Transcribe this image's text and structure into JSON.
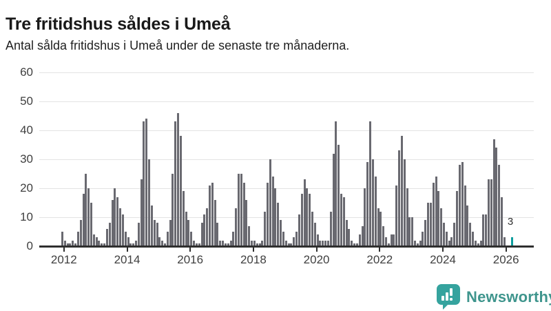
{
  "header": {
    "title": "Tre fritidshus såldes i Umeå",
    "subtitle": "Antal sålda fritidshus i Umeå under de senaste tre månaderna."
  },
  "chart_data": {
    "type": "bar",
    "title": "Tre fritidshus såldes i Umeå",
    "xlabel": "",
    "ylabel": "",
    "start_month": "2011-12",
    "frequency": "monthly (rolling 3-month sum of sold vacation homes)",
    "values": [
      5,
      2,
      1,
      1,
      2,
      1,
      5,
      9,
      18,
      25,
      20,
      15,
      4,
      3,
      2,
      1,
      1,
      6,
      8,
      16,
      20,
      17,
      13,
      11,
      5,
      3,
      1,
      1,
      2,
      8,
      23,
      43,
      44,
      30,
      14,
      9,
      8,
      3,
      2,
      1,
      5,
      9,
      25,
      43,
      46,
      38,
      19,
      12,
      9,
      5,
      2,
      1,
      1,
      8,
      11,
      13,
      21,
      22,
      16,
      8,
      2,
      2,
      1,
      1,
      2,
      5,
      13,
      25,
      25,
      22,
      16,
      7,
      2,
      2,
      1,
      1,
      2,
      12,
      22,
      30,
      24,
      20,
      15,
      9,
      5,
      2,
      1,
      1,
      3,
      5,
      11,
      18,
      23,
      20,
      18,
      12,
      8,
      4,
      2,
      2,
      2,
      2,
      12,
      32,
      43,
      35,
      18,
      17,
      9,
      6,
      2,
      1,
      1,
      4,
      7,
      20,
      29,
      43,
      30,
      24,
      13,
      12,
      7,
      3,
      1,
      4,
      4,
      21,
      33,
      38,
      30,
      20,
      10,
      10,
      2,
      1,
      2,
      5,
      9,
      15,
      15,
      22,
      24,
      19,
      13,
      8,
      5,
      2,
      3,
      8,
      19,
      28,
      29,
      21,
      14,
      8,
      5,
      2,
      1,
      2,
      11,
      11,
      23,
      23,
      37,
      34,
      28,
      17,
      3,
      0,
      0,
      3
    ],
    "highlight": {
      "index": 171,
      "value": 3,
      "label": "3"
    },
    "ylim": [
      0,
      60
    ],
    "yticks": [
      0,
      10,
      20,
      30,
      40,
      50,
      60
    ],
    "xticks": [
      2012,
      2014,
      2016,
      2018,
      2020,
      2022,
      2024,
      2026
    ],
    "grid": true,
    "legend": "none",
    "colors": {
      "bar": "#696970",
      "highlight": "#0b9d9d",
      "grid": "#e3e3e3",
      "axis": "#2f2f2f",
      "tick_label": "#3f3f3f"
    }
  },
  "annotation": {
    "latest_label": "3"
  },
  "branding": {
    "logo_text": "Newsworthy",
    "icon": "newsworthy-chart-bubble-icon",
    "icon_color": "#35a39e",
    "text_color": "#3f958d"
  }
}
